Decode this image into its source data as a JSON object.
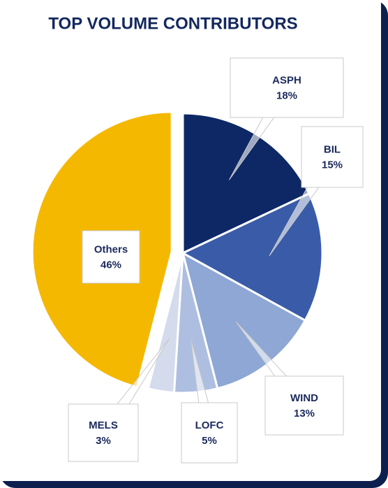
{
  "chart_data": {
    "type": "pie",
    "title": "TOP VOLUME CONTRIBUTORS",
    "categories": [
      "ASPH",
      "BIL",
      "WIND",
      "LOFC",
      "MELS",
      "Others"
    ],
    "values": [
      18,
      15,
      13,
      5,
      3,
      46
    ],
    "value_labels": [
      "18%",
      "15%",
      "13%",
      "5%",
      "3%",
      "46%"
    ],
    "colors": [
      "#0e2866",
      "#3a5ca8",
      "#8ea7d4",
      "#aebee0",
      "#d4dbec",
      "#f5b800"
    ]
  }
}
